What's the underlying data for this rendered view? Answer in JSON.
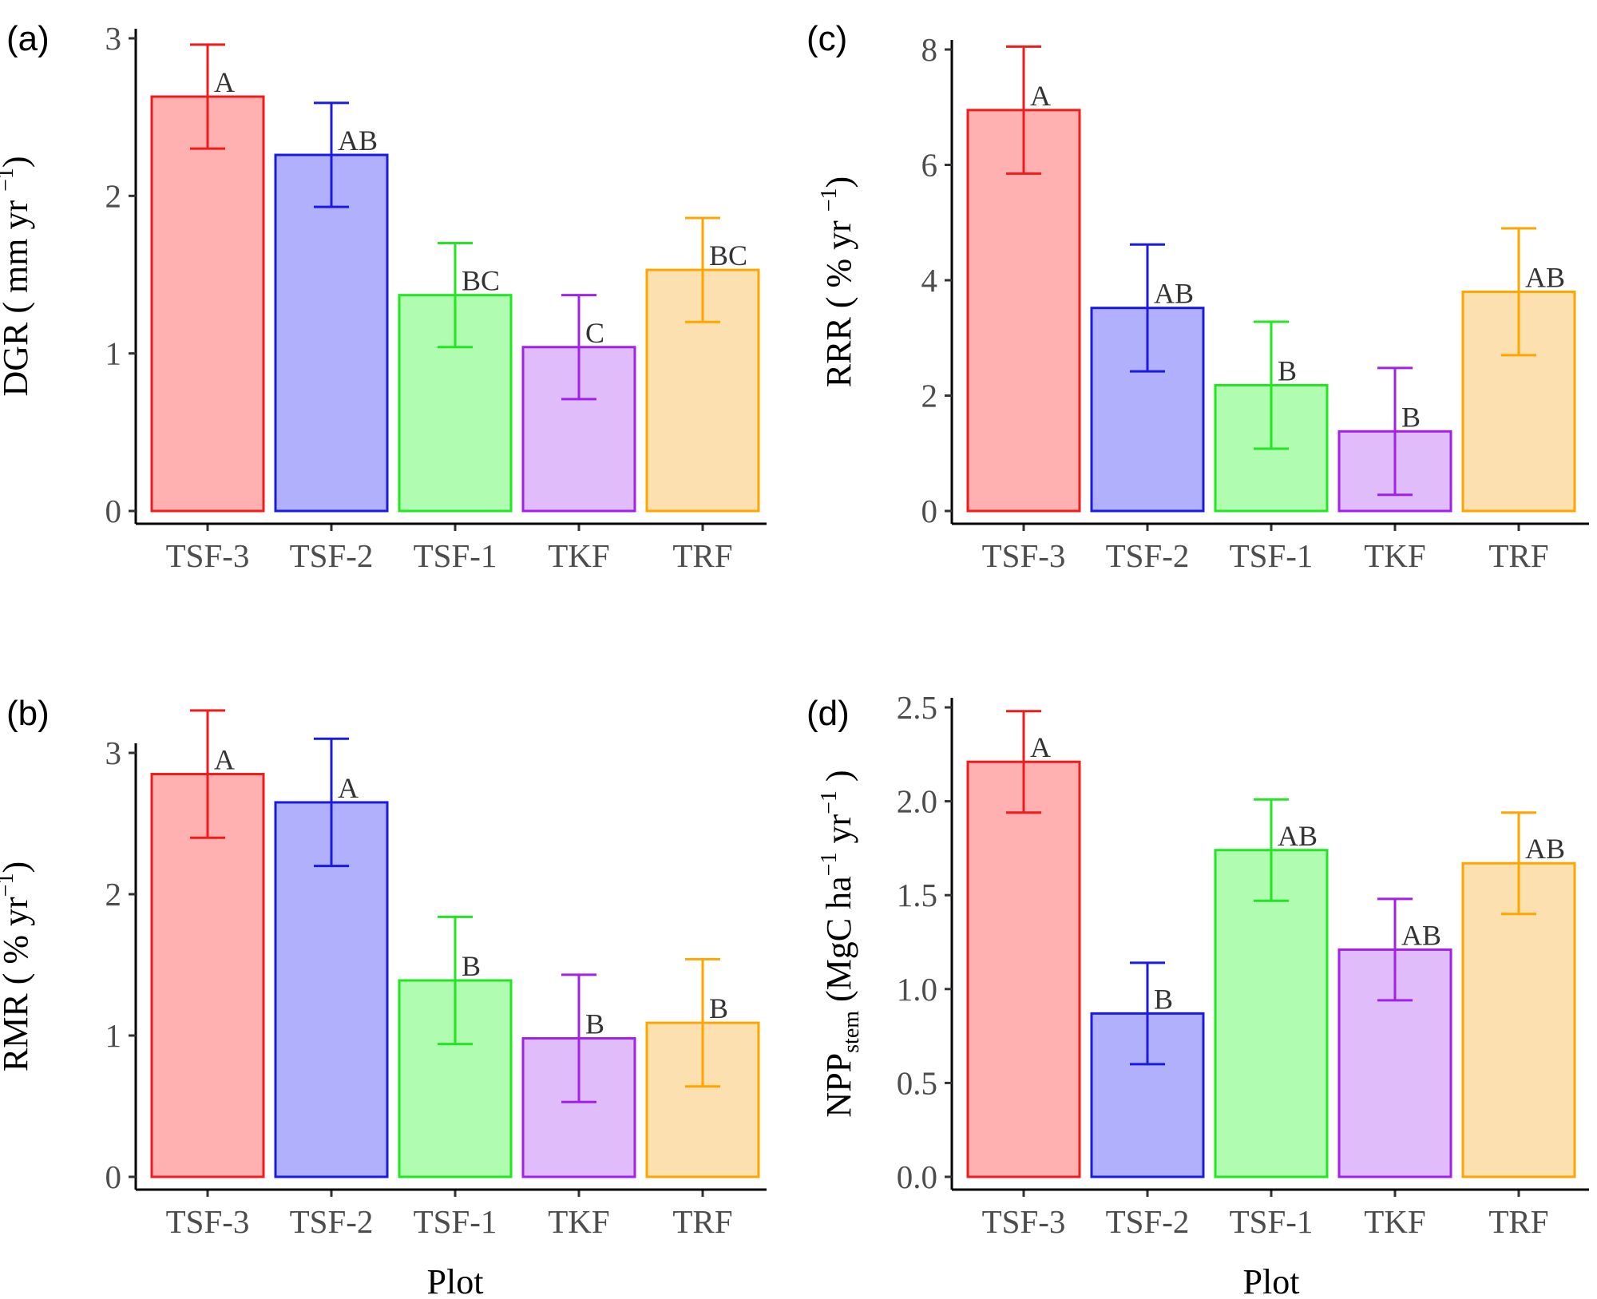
{
  "figure": {
    "x_title": "Plot"
  },
  "colors": {
    "TSF-3": {
      "stroke": "#ee1c1c",
      "fill": "#ffb0b0"
    },
    "TSF-2": {
      "stroke": "#1a1ae6",
      "fill": "#b0b0fc"
    },
    "TSF-1": {
      "stroke": "#22e622",
      "fill": "#b0fcb0"
    },
    "TKF": {
      "stroke": "#a020f0",
      "fill": "#e0bcfa"
    },
    "TRF": {
      "stroke": "#ffa500",
      "fill": "#fce0b0"
    }
  },
  "chart_data": [
    {
      "panel": "(a)",
      "type": "bar",
      "ylabel_parts": [
        "DGR ( mm yr ",
        "−1",
        ")"
      ],
      "categories": [
        "TSF-3",
        "TSF-2",
        "TSF-1",
        "TKF",
        "TRF"
      ],
      "values": [
        2.63,
        2.26,
        1.37,
        1.04,
        1.53
      ],
      "err_low": [
        2.3,
        1.93,
        1.04,
        0.71,
        1.2
      ],
      "err_high": [
        2.96,
        2.59,
        1.7,
        1.37,
        1.86
      ],
      "letters": [
        "A",
        "AB",
        "BC",
        "C",
        "BC"
      ],
      "ylim": [
        0,
        3
      ],
      "yticks": [
        0,
        1,
        2,
        3
      ],
      "tick_labels": [
        "0",
        "1",
        "2",
        "3"
      ],
      "show_xtitle": false
    },
    {
      "panel": "(c)",
      "type": "bar",
      "ylabel_parts": [
        "RRR ( % yr ",
        "−1",
        ")"
      ],
      "categories": [
        "TSF-3",
        "TSF-2",
        "TSF-1",
        "TKF",
        "TRF"
      ],
      "values": [
        6.95,
        3.52,
        2.18,
        1.38,
        3.8
      ],
      "err_low": [
        5.85,
        2.42,
        1.08,
        0.28,
        2.7
      ],
      "err_high": [
        8.05,
        4.62,
        3.28,
        2.48,
        4.9
      ],
      "letters": [
        "A",
        "AB",
        "B",
        "B",
        "AB"
      ],
      "ylim": [
        0,
        8
      ],
      "yticks": [
        0,
        2,
        4,
        6,
        8
      ],
      "tick_labels": [
        "0",
        "2",
        "4",
        "6",
        "8"
      ],
      "show_xtitle": false
    },
    {
      "panel": "(b)",
      "type": "bar",
      "ylabel_parts": [
        "RMR ( % yr",
        "−1",
        ")"
      ],
      "categories": [
        "TSF-3",
        "TSF-2",
        "TSF-1",
        "TKF",
        "TRF"
      ],
      "values": [
        2.85,
        2.65,
        1.39,
        0.98,
        1.09
      ],
      "err_low": [
        2.4,
        2.2,
        0.94,
        0.53,
        0.64
      ],
      "err_high": [
        3.3,
        3.1,
        1.84,
        1.43,
        1.54
      ],
      "letters": [
        "A",
        "A",
        "B",
        "B",
        "B"
      ],
      "ylim": [
        0,
        3
      ],
      "yticks": [
        0,
        1,
        2,
        3
      ],
      "tick_labels": [
        "0",
        "1",
        "2",
        "3"
      ],
      "show_xtitle": true
    },
    {
      "panel": "(d)",
      "type": "bar",
      "ylabel_parts": [
        "NPP",
        "stem",
        " (MgC ha",
        "−1",
        " yr",
        "−1",
        " )"
      ],
      "categories": [
        "TSF-3",
        "TSF-2",
        "TSF-1",
        "TKF",
        "TRF"
      ],
      "values": [
        2.21,
        0.87,
        1.74,
        1.21,
        1.67
      ],
      "err_low": [
        1.94,
        0.6,
        1.47,
        0.94,
        1.4
      ],
      "err_high": [
        2.48,
        1.14,
        2.01,
        1.48,
        1.94
      ],
      "letters": [
        "A",
        "B",
        "AB",
        "AB",
        "AB"
      ],
      "ylim": [
        0,
        2.5
      ],
      "yticks": [
        0,
        0.5,
        1,
        1.5,
        2,
        2.5
      ],
      "tick_labels": [
        "0.0",
        "0.5",
        "1.0",
        "1.5",
        "2.0",
        "2.5"
      ],
      "show_xtitle": true
    }
  ]
}
